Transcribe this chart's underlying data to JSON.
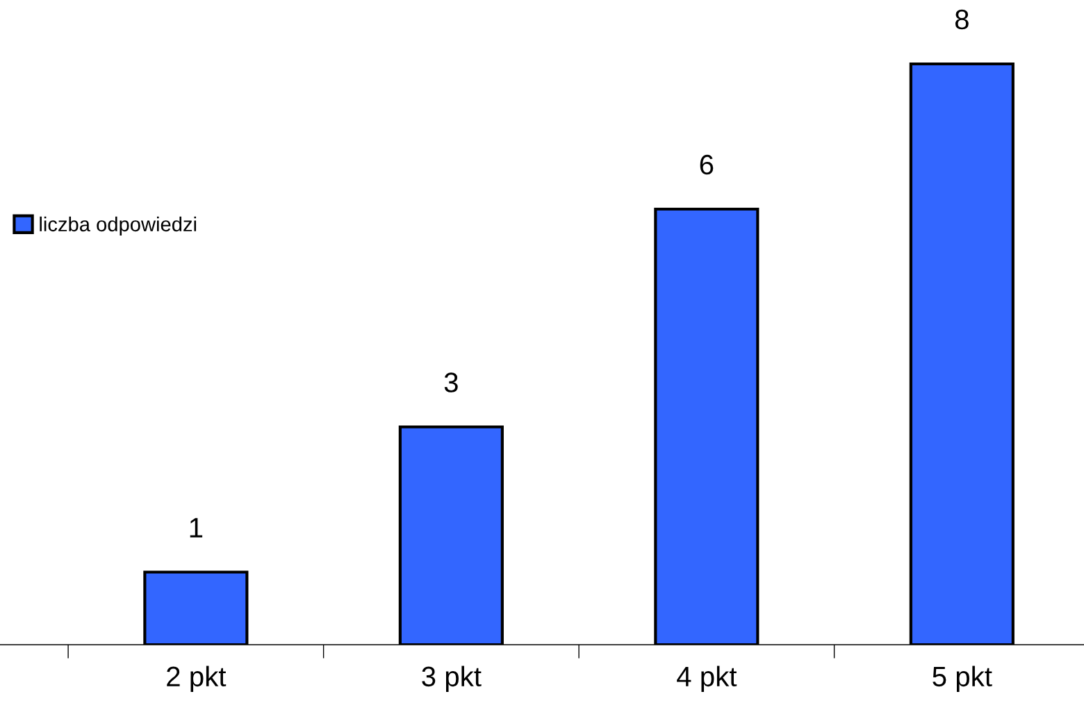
{
  "chart_data": {
    "type": "bar",
    "categories": [
      "2 pkt",
      "3 pkt",
      "4 pkt",
      "5 pkt"
    ],
    "series": [
      {
        "name": "liczba odpowiedzi",
        "color": "#3366ff",
        "values": [
          1,
          3,
          6,
          8
        ]
      }
    ],
    "data_labels": true,
    "legend": "left",
    "grid": false
  }
}
